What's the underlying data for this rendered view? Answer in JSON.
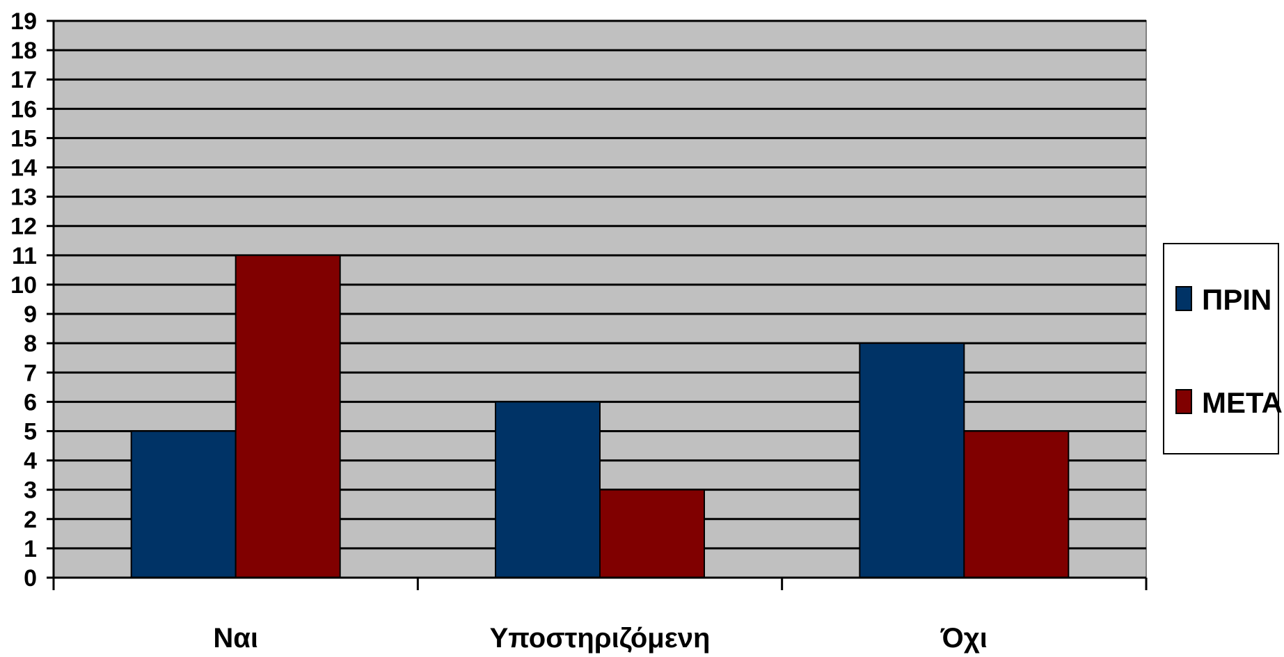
{
  "chart_data": {
    "type": "bar",
    "title": "",
    "xlabel": "",
    "ylabel": "",
    "categories": [
      "Ναι",
      "Υποστηριζόμενη",
      "Όχι"
    ],
    "series": [
      {
        "name": "ΠΡΙΝ",
        "values": [
          5,
          6,
          8
        ]
      },
      {
        "name": "ΜΕΤΑ",
        "values": [
          11,
          3,
          5
        ]
      }
    ],
    "ylim": [
      0,
      19
    ],
    "yticks": [
      0,
      1,
      2,
      3,
      4,
      5,
      6,
      7,
      8,
      9,
      10,
      11,
      12,
      13,
      14,
      15,
      16,
      17,
      18,
      19
    ],
    "grid": true,
    "legend_position": "right",
    "colors": {
      "plot_background": "#c0c0c0",
      "series": [
        "#003366",
        "#800000"
      ],
      "gridline": "#000000"
    }
  }
}
